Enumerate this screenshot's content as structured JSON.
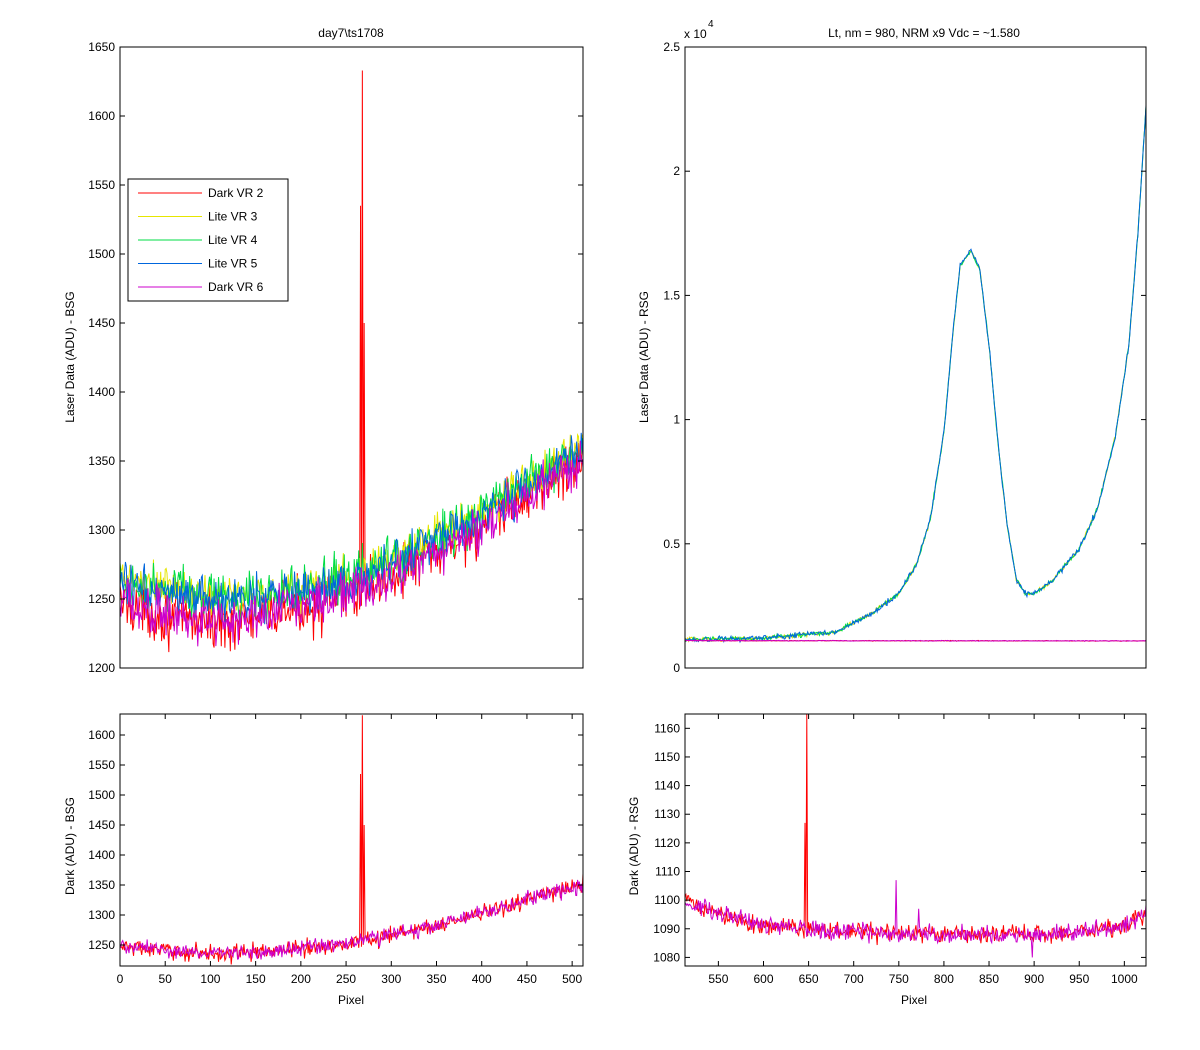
{
  "chart_data": [
    {
      "id": "p1",
      "type": "line",
      "title": "day7\\ts1708",
      "xlabel": "",
      "ylabel": "Laser Data (ADU) - BSG",
      "xlim": [
        0,
        512
      ],
      "ylim": [
        1200,
        1650
      ],
      "x_ticks": [],
      "y_ticks": [
        1200,
        1250,
        1300,
        1350,
        1400,
        1450,
        1500,
        1550,
        1600,
        1650
      ],
      "legend": {
        "location": "upper-left",
        "entries": [
          "Dark VR 2",
          "Lite VR 3",
          "Lite VR 4",
          "Lite VR 5",
          "Dark VR 6"
        ]
      },
      "series": [
        {
          "name": "Dark VR 2",
          "color": "#ff0000",
          "baseline": [
            [
              0,
              1248
            ],
            [
              50,
              1238
            ],
            [
              100,
              1233
            ],
            [
              150,
              1236
            ],
            [
              200,
              1244
            ],
            [
              250,
              1252
            ],
            [
              300,
              1266
            ],
            [
              350,
              1283
            ],
            [
              400,
              1302
            ],
            [
              450,
              1325
            ],
            [
              512,
              1352
            ]
          ],
          "noise": 14,
          "spikes": [
            [
              268,
              1633
            ],
            [
              266,
              1535
            ],
            [
              270,
              1450
            ]
          ]
        },
        {
          "name": "Lite VR 3",
          "color": "#e6e600",
          "baseline": [
            [
              0,
              1265
            ],
            [
              50,
              1258
            ],
            [
              100,
              1252
            ],
            [
              150,
              1253
            ],
            [
              200,
              1258
            ],
            [
              250,
              1265
            ],
            [
              300,
              1278
            ],
            [
              350,
              1295
            ],
            [
              400,
              1313
            ],
            [
              450,
              1335
            ],
            [
              512,
              1360
            ]
          ],
          "noise": 11
        },
        {
          "name": "Lite VR 4",
          "color": "#00dd44",
          "baseline": [
            [
              0,
              1264
            ],
            [
              50,
              1257
            ],
            [
              100,
              1251
            ],
            [
              150,
              1252
            ],
            [
              200,
              1257
            ],
            [
              250,
              1264
            ],
            [
              300,
              1277
            ],
            [
              350,
              1294
            ],
            [
              400,
              1312
            ],
            [
              450,
              1334
            ],
            [
              512,
              1360
            ]
          ],
          "noise": 12
        },
        {
          "name": "Lite VR 5",
          "color": "#0066dd",
          "baseline": [
            [
              0,
              1262
            ],
            [
              50,
              1255
            ],
            [
              100,
              1249
            ],
            [
              150,
              1250
            ],
            [
              200,
              1255
            ],
            [
              250,
              1262
            ],
            [
              300,
              1275
            ],
            [
              350,
              1292
            ],
            [
              400,
              1310
            ],
            [
              450,
              1332
            ],
            [
              512,
              1358
            ]
          ],
          "noise": 11
        },
        {
          "name": "Dark VR 6",
          "color": "#cc00cc",
          "baseline": [
            [
              0,
              1249
            ],
            [
              50,
              1239
            ],
            [
              100,
              1234
            ],
            [
              150,
              1237
            ],
            [
              200,
              1245
            ],
            [
              250,
              1253
            ],
            [
              300,
              1266
            ],
            [
              350,
              1283
            ],
            [
              400,
              1302
            ],
            [
              450,
              1325
            ],
            [
              512,
              1351
            ]
          ],
          "noise": 12
        }
      ]
    },
    {
      "id": "p2",
      "type": "line",
      "title": "Lt, nm = 980, NRM x9 Vdc = ~1.580",
      "xlabel": "",
      "ylabel": "Laser Data (ADU) - RSG",
      "y_exponent_label": "x 10",
      "y_exponent": "4",
      "xlim": [
        513,
        1024
      ],
      "ylim": [
        0,
        2.5
      ],
      "x_ticks": [],
      "y_ticks": [
        0,
        0.5,
        1,
        1.5,
        2,
        2.5
      ],
      "series": [
        {
          "name": "Lite VR 3",
          "color": "#e6e600",
          "baseline": [
            [
              513,
              0.115
            ],
            [
              600,
              0.12
            ],
            [
              680,
              0.145
            ],
            [
              720,
              0.22
            ],
            [
              750,
              0.3
            ],
            [
              770,
              0.42
            ],
            [
              785,
              0.6
            ],
            [
              800,
              0.95
            ],
            [
              810,
              1.35
            ],
            [
              818,
              1.62
            ],
            [
              830,
              1.68
            ],
            [
              840,
              1.6
            ],
            [
              850,
              1.3
            ],
            [
              860,
              0.9
            ],
            [
              870,
              0.58
            ],
            [
              880,
              0.36
            ],
            [
              890,
              0.3
            ],
            [
              900,
              0.3
            ],
            [
              920,
              0.35
            ],
            [
              950,
              0.48
            ],
            [
              970,
              0.64
            ],
            [
              990,
              0.93
            ],
            [
              1005,
              1.3
            ],
            [
              1015,
              1.75
            ],
            [
              1024,
              2.26
            ]
          ],
          "noise": 0.006
        },
        {
          "name": "Lite VR 4",
          "color": "#00dd44",
          "baseline": [
            [
              513,
              0.115
            ],
            [
              600,
              0.12
            ],
            [
              680,
              0.145
            ],
            [
              720,
              0.22
            ],
            [
              750,
              0.3
            ],
            [
              770,
              0.42
            ],
            [
              785,
              0.6
            ],
            [
              800,
              0.95
            ],
            [
              810,
              1.35
            ],
            [
              818,
              1.62
            ],
            [
              830,
              1.68
            ],
            [
              840,
              1.6
            ],
            [
              850,
              1.3
            ],
            [
              860,
              0.9
            ],
            [
              870,
              0.58
            ],
            [
              880,
              0.36
            ],
            [
              890,
              0.3
            ],
            [
              900,
              0.3
            ],
            [
              920,
              0.35
            ],
            [
              950,
              0.48
            ],
            [
              970,
              0.64
            ],
            [
              990,
              0.93
            ],
            [
              1005,
              1.3
            ],
            [
              1015,
              1.75
            ],
            [
              1024,
              2.26
            ]
          ],
          "noise": 0.006
        },
        {
          "name": "Lite VR 5",
          "color": "#0066dd",
          "baseline": [
            [
              513,
              0.115
            ],
            [
              600,
              0.12
            ],
            [
              680,
              0.145
            ],
            [
              720,
              0.22
            ],
            [
              750,
              0.3
            ],
            [
              770,
              0.42
            ],
            [
              785,
              0.6
            ],
            [
              800,
              0.95
            ],
            [
              810,
              1.35
            ],
            [
              818,
              1.62
            ],
            [
              830,
              1.68
            ],
            [
              840,
              1.6
            ],
            [
              850,
              1.3
            ],
            [
              860,
              0.9
            ],
            [
              870,
              0.58
            ],
            [
              880,
              0.36
            ],
            [
              890,
              0.3
            ],
            [
              900,
              0.3
            ],
            [
              920,
              0.35
            ],
            [
              950,
              0.48
            ],
            [
              970,
              0.64
            ],
            [
              990,
              0.93
            ],
            [
              1005,
              1.3
            ],
            [
              1015,
              1.75
            ],
            [
              1024,
              2.26
            ]
          ],
          "noise": 0.008
        },
        {
          "name": "Dark VR 2",
          "color": "#ff0000",
          "baseline": [
            [
              513,
              0.11
            ],
            [
              1024,
              0.109
            ]
          ],
          "noise": 0.001
        },
        {
          "name": "Dark VR 6",
          "color": "#cc00cc",
          "baseline": [
            [
              513,
              0.11
            ],
            [
              1024,
              0.109
            ]
          ],
          "noise": 0.001
        }
      ]
    },
    {
      "id": "p3",
      "type": "line",
      "title": "",
      "xlabel": "Pixel",
      "ylabel": "Dark (ADU) - BSG",
      "xlim": [
        0,
        512
      ],
      "ylim": [
        1215,
        1635
      ],
      "x_ticks": [
        0,
        50,
        100,
        150,
        200,
        250,
        300,
        350,
        400,
        450,
        500
      ],
      "y_ticks": [
        1250,
        1300,
        1350,
        1400,
        1450,
        1500,
        1550,
        1600
      ],
      "series": [
        {
          "name": "Dark VR 2",
          "color": "#ff0000",
          "baseline": [
            [
              0,
              1248
            ],
            [
              50,
              1240
            ],
            [
              100,
              1236
            ],
            [
              150,
              1238
            ],
            [
              200,
              1244
            ],
            [
              250,
              1252
            ],
            [
              300,
              1266
            ],
            [
              350,
              1283
            ],
            [
              400,
              1302
            ],
            [
              450,
              1325
            ],
            [
              512,
              1352
            ]
          ],
          "noise": 10,
          "spikes": [
            [
              268,
              1633
            ],
            [
              266,
              1535
            ],
            [
              270,
              1450
            ]
          ]
        },
        {
          "name": "Dark VR 6",
          "color": "#cc00cc",
          "baseline": [
            [
              0,
              1249
            ],
            [
              50,
              1241
            ],
            [
              100,
              1237
            ],
            [
              150,
              1239
            ],
            [
              200,
              1245
            ],
            [
              250,
              1253
            ],
            [
              300,
              1266
            ],
            [
              350,
              1283
            ],
            [
              400,
              1302
            ],
            [
              450,
              1325
            ],
            [
              512,
              1351
            ]
          ],
          "noise": 9
        }
      ]
    },
    {
      "id": "p4",
      "type": "line",
      "title": "",
      "xlabel": "Pixel",
      "ylabel": "Dark (ADU) - RSG",
      "xlim": [
        513,
        1024
      ],
      "ylim": [
        1077,
        1165
      ],
      "x_ticks": [
        550,
        600,
        650,
        700,
        750,
        800,
        850,
        900,
        950,
        1000
      ],
      "y_ticks": [
        1080,
        1090,
        1100,
        1110,
        1120,
        1130,
        1140,
        1150,
        1160
      ],
      "series": [
        {
          "name": "Dark VR 2",
          "color": "#ff0000",
          "baseline": [
            [
              513,
              1100
            ],
            [
              540,
              1096
            ],
            [
              600,
              1091
            ],
            [
              700,
              1089
            ],
            [
              800,
              1088
            ],
            [
              900,
              1088
            ],
            [
              950,
              1089
            ],
            [
              1000,
              1091
            ],
            [
              1024,
              1095
            ]
          ],
          "noise": 2.2,
          "spikes": [
            [
              648,
              1165
            ],
            [
              646,
              1127
            ]
          ]
        },
        {
          "name": "Dark VR 6",
          "color": "#cc00cc",
          "baseline": [
            [
              513,
              1100
            ],
            [
              540,
              1096
            ],
            [
              600,
              1091
            ],
            [
              700,
              1089
            ],
            [
              800,
              1088
            ],
            [
              900,
              1088
            ],
            [
              950,
              1089
            ],
            [
              1000,
              1091
            ],
            [
              1024,
              1095
            ]
          ],
          "noise": 2.2,
          "spikes": [
            [
              747,
              1107
            ],
            [
              772,
              1097
            ],
            [
              898,
              1080
            ]
          ]
        }
      ]
    }
  ]
}
